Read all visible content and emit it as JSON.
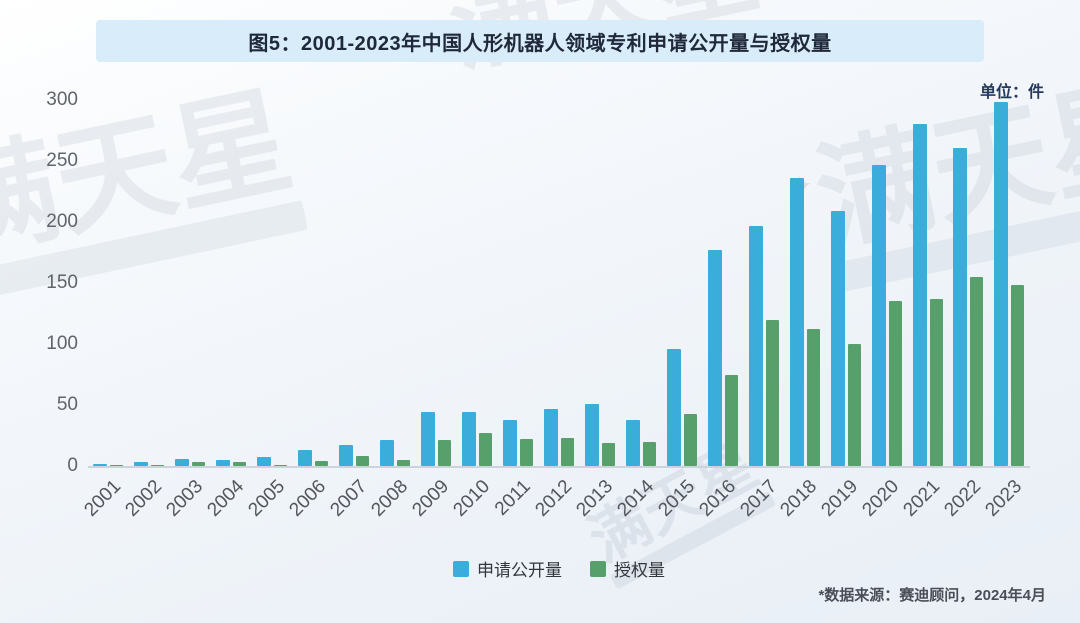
{
  "header": {
    "title": "图5：2001-2023年中国人形机器人领域专利申请公开量与授权量"
  },
  "unit_label": "单位：件",
  "watermark": {
    "text": "满天星",
    "sparkle": "✦"
  },
  "chart_data": {
    "type": "bar",
    "title": "图5：2001-2023年中国人形机器人领域专利申请公开量与授权量",
    "unit": "单位：件",
    "categories": [
      "2001",
      "2002",
      "2003",
      "2004",
      "2005",
      "2006",
      "2007",
      "2008",
      "2009",
      "2010",
      "2011",
      "2012",
      "2013",
      "2014",
      "2015",
      "2016",
      "2017",
      "2018",
      "2019",
      "2020",
      "2021",
      "2022",
      "2023"
    ],
    "series": [
      {
        "name": "申请公开量",
        "color": "#3aadda",
        "values": [
          2,
          3,
          6,
          5,
          7,
          13,
          17,
          21,
          44,
          44,
          38,
          47,
          51,
          38,
          96,
          177,
          197,
          236,
          209,
          247,
          280,
          261,
          298
        ]
      },
      {
        "name": "授权量",
        "color": "#57a06c",
        "values": [
          1,
          1,
          3,
          3,
          1,
          4,
          8,
          5,
          21,
          27,
          22,
          23,
          19,
          20,
          43,
          75,
          120,
          112,
          100,
          135,
          137,
          155,
          148
        ]
      }
    ],
    "xlabel": "",
    "ylabel": "",
    "ylim": [
      0,
      300
    ],
    "yticks": [
      0,
      50,
      100,
      150,
      200,
      250,
      300
    ],
    "grid": false,
    "legend_position": "bottom",
    "x_tick_rotation": 45
  },
  "legend": {
    "items": [
      {
        "label": "申请公开量",
        "color": "#3aadda"
      },
      {
        "label": "授权量",
        "color": "#57a06c"
      }
    ]
  },
  "footer": {
    "source": "*数据来源：赛迪顾问，2024年4月"
  }
}
